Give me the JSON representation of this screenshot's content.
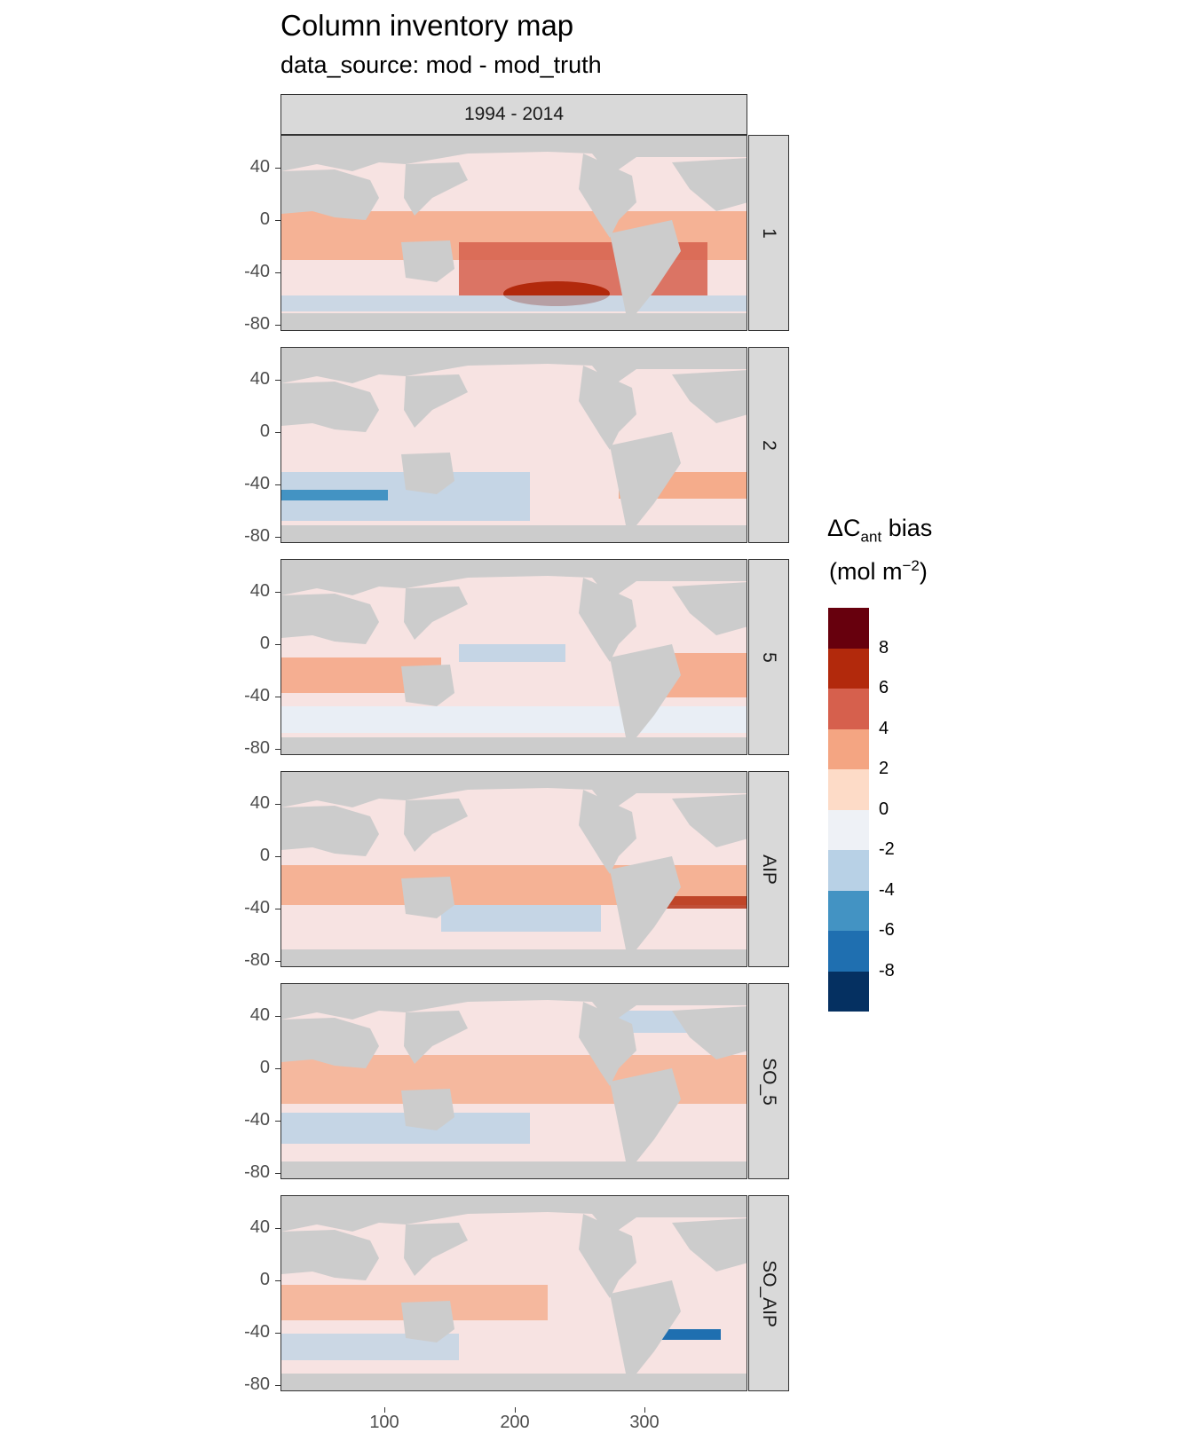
{
  "title": "Column inventory map",
  "subtitle": "data_source: mod - mod_truth",
  "facet_top": "1994 - 2014",
  "panels": [
    {
      "label": "1"
    },
    {
      "label": "2"
    },
    {
      "label": "5"
    },
    {
      "label": "AIP"
    },
    {
      "label": "SO_5"
    },
    {
      "label": "SO_AIP"
    }
  ],
  "y_ticks": [
    "40",
    "0",
    "-40",
    "-80"
  ],
  "x_ticks": [
    "100",
    "200",
    "300"
  ],
  "legend": {
    "title_main": "ΔC",
    "title_sub": "ant",
    "title_tail": " bias",
    "unit_pre": "(mol m",
    "unit_sup": "−2",
    "unit_post": ")",
    "labels": [
      "8",
      "6",
      "4",
      "2",
      "0",
      "-2",
      "-4",
      "-6",
      "-8"
    ],
    "colors": [
      "#67000d",
      "#b2290c",
      "#d6604d",
      "#f4a582",
      "#fddbc7",
      "#eef1f6",
      "#b8d1e6",
      "#4393c3",
      "#1f6fb0",
      "#053061"
    ]
  },
  "map_colors": {
    "land": "#cccccc",
    "ocean_neutral": "#f7e3e2",
    "ocean_cool": "#e9eef5"
  }
}
